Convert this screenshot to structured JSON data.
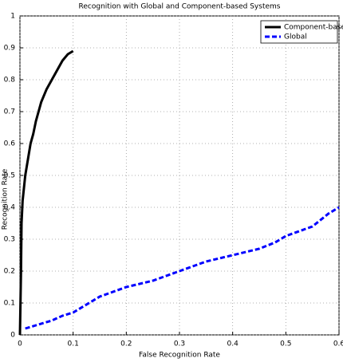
{
  "chart_data": {
    "type": "line",
    "title": "Recognition with Global and Component-based Systems",
    "x_label": "False Recognition Rate",
    "y_label": "Recognition Rate",
    "xlim": [
      0,
      0.6
    ],
    "ylim": [
      0,
      1
    ],
    "xticks": [
      0,
      0.1,
      0.2,
      0.3,
      0.4,
      0.5,
      0.6
    ],
    "yticks": [
      0,
      0.1,
      0.2,
      0.3,
      0.4,
      0.5,
      0.6,
      0.7,
      0.8,
      0.9,
      1
    ],
    "grid": true,
    "legend": "northeast",
    "series": [
      {
        "name": "Component-based",
        "color": "#000000",
        "style": "solid",
        "x": [
          0,
          0.002,
          0.003,
          0.005,
          0.01,
          0.015,
          0.02,
          0.025,
          0.03,
          0.035,
          0.04,
          0.05,
          0.06,
          0.07,
          0.08,
          0.09,
          0.1
        ],
        "values": [
          0,
          0.2,
          0.35,
          0.42,
          0.5,
          0.55,
          0.6,
          0.63,
          0.67,
          0.7,
          0.73,
          0.77,
          0.8,
          0.83,
          0.86,
          0.88,
          0.89
        ]
      },
      {
        "name": "Global",
        "color": "#0000ff",
        "style": "dashed",
        "x": [
          0.01,
          0.03,
          0.06,
          0.08,
          0.1,
          0.15,
          0.2,
          0.25,
          0.3,
          0.35,
          0.4,
          0.45,
          0.48,
          0.5,
          0.55,
          0.58,
          0.6
        ],
        "values": [
          0.02,
          0.03,
          0.045,
          0.06,
          0.07,
          0.12,
          0.15,
          0.17,
          0.2,
          0.23,
          0.25,
          0.27,
          0.29,
          0.31,
          0.34,
          0.38,
          0.4
        ]
      }
    ]
  }
}
